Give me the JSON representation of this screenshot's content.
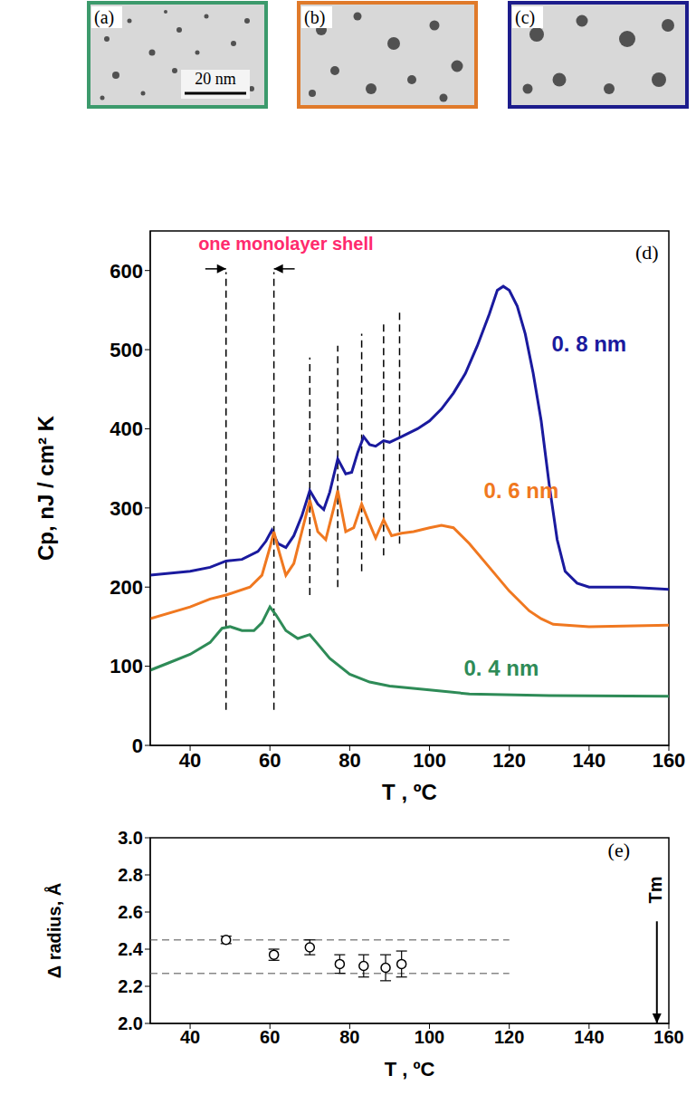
{
  "panels": [
    {
      "label": "(a)",
      "color": "#3c9a6c",
      "scale_bar": "20 nm"
    },
    {
      "label": "(b)",
      "color": "#e07a2a"
    },
    {
      "label": "(c)",
      "color": "#1c1c8c"
    }
  ],
  "chart_data": [
    {
      "type": "line",
      "panel": "(d)",
      "x_label": "T , ºC",
      "y_label": "Cp, nJ / cm² K",
      "xlim": [
        30,
        160
      ],
      "xticks": [
        40,
        60,
        80,
        100,
        120,
        140,
        160
      ],
      "ylim": [
        0,
        650
      ],
      "yticks": [
        0,
        100,
        200,
        300,
        400,
        500,
        600
      ],
      "grid": false,
      "series": [
        {
          "name": "0. 8 nm",
          "color": "#1a1a9e",
          "label_pos": [
            140,
            505
          ],
          "x": [
            30,
            40,
            45,
            49,
            53,
            57,
            59,
            60.5,
            62,
            64,
            66,
            68,
            70,
            72,
            73.5,
            75,
            77,
            79,
            80.5,
            82,
            83.5,
            85,
            86.5,
            88.5,
            90,
            93,
            97,
            100,
            103,
            106,
            109,
            112,
            115,
            117,
            118.5,
            120,
            122,
            124,
            126,
            128,
            130,
            132,
            134,
            137,
            140,
            150,
            160
          ],
          "values": [
            215,
            220,
            225,
            233,
            235,
            245,
            258,
            272,
            255,
            250,
            265,
            290,
            322,
            305,
            298,
            320,
            362,
            343,
            345,
            370,
            390,
            380,
            378,
            385,
            383,
            390,
            400,
            410,
            425,
            445,
            470,
            505,
            545,
            575,
            580,
            575,
            555,
            520,
            470,
            410,
            330,
            260,
            220,
            205,
            200,
            200,
            197
          ]
        },
        {
          "name": "0. 6 nm",
          "color": "#f07820",
          "label_pos": [
            123,
            320
          ],
          "x": [
            30,
            40,
            45,
            49,
            55,
            58,
            60,
            61,
            62,
            64,
            66,
            68,
            70,
            72,
            74,
            76,
            77,
            79,
            81,
            83,
            85,
            86.5,
            88.5,
            90.5,
            93,
            96,
            100,
            103,
            106,
            110,
            115,
            120,
            125,
            128,
            131,
            140,
            160
          ],
          "values": [
            160,
            175,
            185,
            190,
            200,
            215,
            250,
            270,
            250,
            215,
            230,
            270,
            310,
            270,
            260,
            300,
            322,
            270,
            275,
            305,
            280,
            262,
            285,
            265,
            268,
            270,
            275,
            278,
            275,
            255,
            225,
            195,
            170,
            160,
            153,
            150,
            152
          ]
        },
        {
          "name": "0. 4 nm",
          "color": "#2e8b57",
          "label_pos": [
            118,
            95
          ],
          "x": [
            30,
            35,
            40,
            45,
            48,
            50,
            53,
            56,
            58,
            60,
            61.5,
            64,
            67,
            70,
            72,
            75,
            80,
            85,
            90,
            100,
            110,
            130,
            160
          ],
          "values": [
            95,
            105,
            115,
            130,
            148,
            150,
            145,
            145,
            155,
            175,
            165,
            145,
            135,
            140,
            128,
            110,
            90,
            80,
            75,
            70,
            65,
            63,
            62
          ]
        }
      ],
      "dashed_lines": [
        {
          "x": 49,
          "y": [
            45,
            598
          ]
        },
        {
          "x": 61,
          "y": [
            45,
            598
          ]
        },
        {
          "x": 70,
          "y": [
            190,
            490
          ]
        },
        {
          "x": 77,
          "y": [
            200,
            505
          ]
        },
        {
          "x": 83,
          "y": [
            220,
            520
          ]
        },
        {
          "x": 88.5,
          "y": [
            240,
            535
          ]
        },
        {
          "x": 92.5,
          "y": [
            255,
            550
          ]
        }
      ],
      "annotations": [
        {
          "text": "one monolayer shell",
          "x": 64,
          "y": 632,
          "color": "#ff2a6d"
        }
      ]
    },
    {
      "type": "scatter",
      "panel": "(e)",
      "x_label": "T , ºC",
      "y_label": "Δ radius, Å",
      "xlim": [
        30,
        160
      ],
      "xticks": [
        40,
        60,
        80,
        100,
        120,
        140,
        160
      ],
      "ylim": [
        2.0,
        3.0
      ],
      "yticks": [
        {
          "value": 2.0,
          "label": "2.0"
        },
        2.2,
        2.4,
        2.6,
        2.8,
        {
          "value": 3.0,
          "label": "3.0"
        }
      ],
      "grid": false,
      "color": "#000000",
      "marker": "circle",
      "x": [
        49,
        61,
        70,
        77.5,
        83.5,
        89,
        93
      ],
      "values": [
        2.45,
        2.37,
        2.41,
        2.32,
        2.31,
        2.3,
        2.32
      ],
      "errors": [
        0.02,
        0.03,
        0.04,
        0.05,
        0.06,
        0.07,
        0.07
      ],
      "dashed_lines": [
        {
          "y": 2.45,
          "x": [
            30,
            120
          ]
        },
        {
          "y": 2.27,
          "x": [
            30,
            120
          ]
        }
      ],
      "annotations": [
        {
          "text": "Tm",
          "x": 157,
          "y": 2.72,
          "color": "#000000"
        }
      ]
    }
  ]
}
